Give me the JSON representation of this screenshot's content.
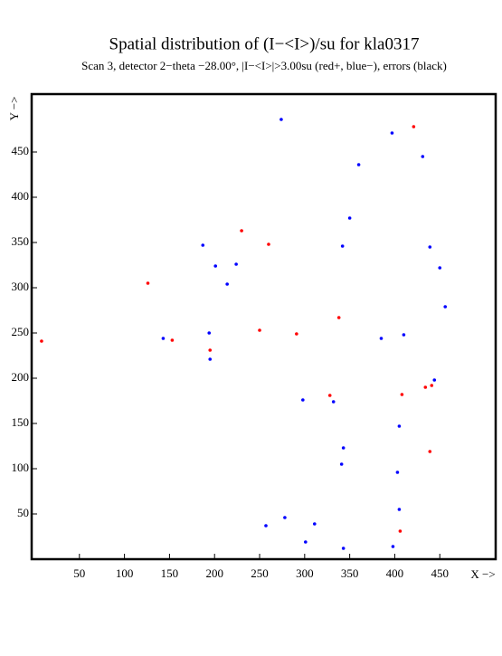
{
  "chart_data": {
    "type": "scatter",
    "title": "Spatial distribution of (I−<I>)/su for kla0317",
    "subtitle": "Scan  3, detector 2−theta −28.00°, |I−<I>|>3.00su (red+, blue−), errors (black)",
    "x_label": "X −>",
    "y_label": "Y −>",
    "xlim": [
      -3,
      512
    ],
    "ylim": [
      0,
      514
    ],
    "xticks": [
      50,
      100,
      150,
      200,
      250,
      300,
      350,
      400,
      450
    ],
    "yticks": [
      50,
      100,
      150,
      200,
      250,
      300,
      350,
      400,
      450
    ],
    "series": [
      {
        "color": "#0000ff",
        "x": [
          274,
          397,
          431,
          360,
          350,
          187,
          342,
          201,
          224,
          214,
          439,
          450,
          456,
          194,
          143,
          385,
          410,
          195,
          298,
          332,
          444,
          405,
          343,
          341,
          403,
          405,
          278,
          311,
          257,
          301,
          398,
          343
        ],
        "values": [
          486,
          471,
          445,
          436,
          377,
          347,
          346,
          324,
          326,
          304,
          345,
          322,
          279,
          250,
          244,
          244,
          248,
          221,
          176,
          174,
          198,
          147,
          123,
          105,
          96,
          55,
          46,
          39,
          37,
          19,
          14,
          12
        ]
      },
      {
        "color": "#ff0000",
        "x": [
          421,
          230,
          260,
          126,
          338,
          250,
          291,
          8,
          153,
          195,
          408,
          328,
          434,
          441,
          439,
          406
        ],
        "values": [
          478,
          363,
          348,
          305,
          267,
          253,
          249,
          241,
          242,
          231,
          182,
          181,
          190,
          192,
          119,
          31
        ]
      }
    ]
  }
}
